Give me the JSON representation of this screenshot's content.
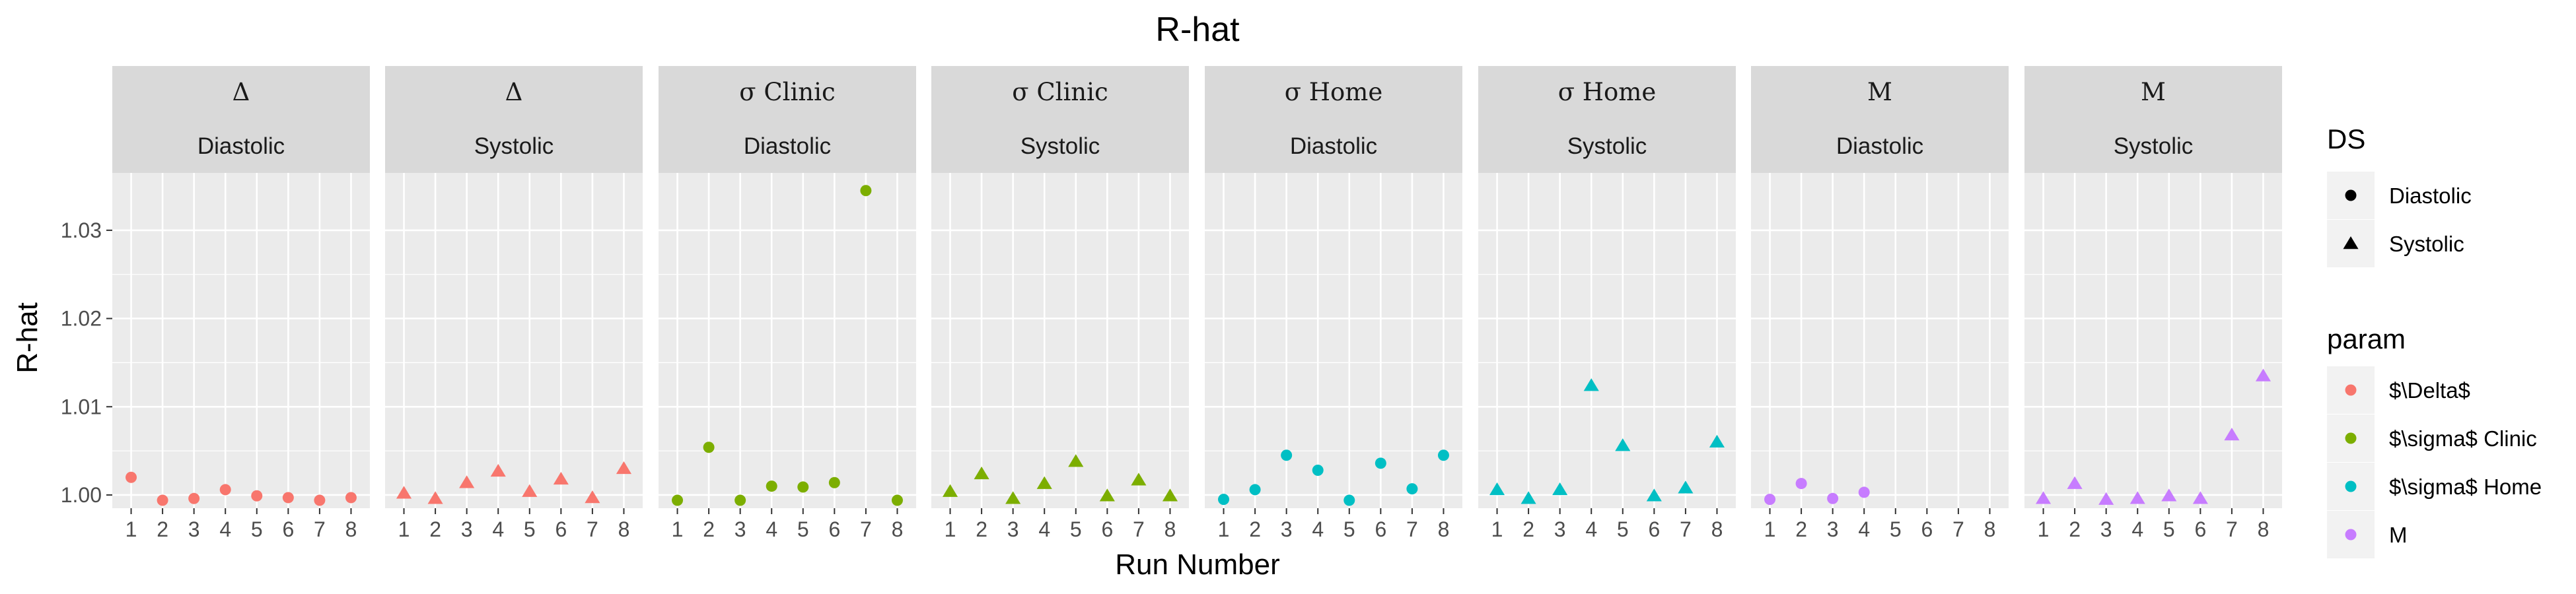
{
  "chart_data": {
    "type": "scatter",
    "title": "R-hat",
    "xlabel": "Run Number",
    "ylabel": "R-hat",
    "x_ticks": [
      "1",
      "2",
      "3",
      "4",
      "5",
      "6",
      "7",
      "8"
    ],
    "y_ticks": [
      "1.00",
      "1.01",
      "1.02",
      "1.03"
    ],
    "ylim": [
      0.9985,
      1.0365
    ],
    "xlim": [
      0.4,
      8.6
    ],
    "grid": true,
    "legend_position": "right",
    "legend": {
      "shape": {
        "title": "DS",
        "entries": [
          {
            "label": "Diastolic",
            "shape": "circle"
          },
          {
            "label": "Systolic",
            "shape": "triangle"
          }
        ]
      },
      "color": {
        "title": "param",
        "entries": [
          {
            "label": "$\\Delta$",
            "color": "#F8766D"
          },
          {
            "label": "$\\sigma$ Clinic",
            "color": "#7CAE00"
          },
          {
            "label": "$\\sigma$ Home",
            "color": "#00BFC4"
          },
          {
            "label": "M",
            "color": "#C77CFF"
          }
        ]
      }
    },
    "panels": [
      {
        "strip_top": "Δ",
        "strip_bottom": "Diastolic",
        "color": "#F8766D",
        "shape": "circle",
        "x": [
          1,
          2,
          3,
          4,
          5,
          6,
          7,
          8
        ],
        "y": [
          1.002,
          0.9994,
          0.9996,
          1.0006,
          0.9999,
          0.9997,
          0.9994,
          0.9997
        ]
      },
      {
        "strip_top": "Δ",
        "strip_bottom": "Systolic",
        "color": "#F8766D",
        "shape": "triangle",
        "x": [
          1,
          2,
          3,
          4,
          5,
          6,
          7,
          8
        ],
        "y": [
          1.0002,
          0.9996,
          1.0014,
          1.0027,
          1.0004,
          1.0018,
          0.9997,
          1.003
        ]
      },
      {
        "strip_top": "σ Clinic",
        "strip_bottom": "Diastolic",
        "color": "#7CAE00",
        "shape": "circle",
        "x": [
          1,
          2,
          3,
          4,
          5,
          6,
          7,
          8
        ],
        "y": [
          0.9994,
          1.0054,
          0.9994,
          1.001,
          1.0009,
          1.0014,
          1.0345,
          0.9994
        ]
      },
      {
        "strip_top": "σ Clinic",
        "strip_bottom": "Systolic",
        "color": "#7CAE00",
        "shape": "triangle",
        "x": [
          1,
          2,
          3,
          4,
          5,
          6,
          7,
          8
        ],
        "y": [
          1.0004,
          1.0024,
          0.9996,
          1.0013,
          1.0038,
          0.9999,
          1.0017,
          0.9999
        ]
      },
      {
        "strip_top": "σ Home",
        "strip_bottom": "Diastolic",
        "color": "#00BFC4",
        "shape": "circle",
        "x": [
          1,
          2,
          3,
          4,
          5,
          6,
          7,
          8
        ],
        "y": [
          0.9995,
          1.0006,
          1.0045,
          1.0028,
          0.9994,
          1.0036,
          1.0007,
          1.0045
        ]
      },
      {
        "strip_top": "σ Home",
        "strip_bottom": "Systolic",
        "color": "#00BFC4",
        "shape": "triangle",
        "x": [
          1,
          2,
          3,
          4,
          5,
          6,
          7,
          8
        ],
        "y": [
          1.0006,
          0.9996,
          1.0006,
          1.0124,
          1.0056,
          0.9999,
          1.0008,
          1.006
        ]
      },
      {
        "strip_top": "M",
        "strip_bottom": "Diastolic",
        "color": "#C77CFF",
        "shape": "circle",
        "x": [
          1,
          2,
          3,
          4
        ],
        "y": [
          0.9995,
          1.0013,
          0.9996,
          1.0003
        ]
      },
      {
        "strip_top": "M",
        "strip_bottom": "Systolic",
        "color": "#C77CFF",
        "shape": "triangle",
        "x": [
          1,
          2,
          3,
          4,
          5,
          6,
          7,
          8
        ],
        "y": [
          0.9996,
          1.0013,
          0.9995,
          0.9996,
          0.9999,
          0.9996,
          1.0068,
          1.0135
        ]
      }
    ]
  }
}
